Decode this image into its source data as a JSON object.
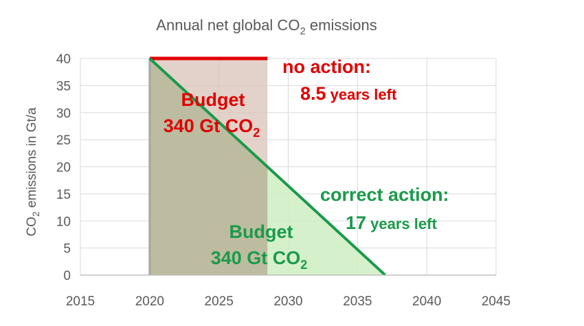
{
  "chart_data": {
    "type": "line",
    "title": "Annual net global CO",
    "title_sub": "2",
    "title_tail": " emissions",
    "ylabel": "CO",
    "ylabel_sub": "2",
    "ylabel_tail": " emissions in Gt/a",
    "xlim": [
      2015,
      2045
    ],
    "ylim": [
      0,
      40
    ],
    "x_ticks": [
      2015,
      2020,
      2025,
      2030,
      2035,
      2040,
      2045
    ],
    "y_ticks": [
      0,
      5,
      10,
      15,
      20,
      25,
      30,
      35,
      40
    ],
    "grid": true,
    "series": [
      {
        "key": "no_action",
        "x": [
          2020,
          2028.5
        ],
        "y": [
          40,
          40
        ],
        "color": "#e00000"
      },
      {
        "key": "correct_action",
        "x": [
          2020,
          2037
        ],
        "y": [
          40,
          0
        ],
        "color": "#1a9a4a"
      }
    ],
    "regions": [
      {
        "key": "budget_no_action",
        "x": [
          2020,
          2028.5
        ],
        "y": [
          0,
          40
        ],
        "color": "#d9c3b8"
      },
      {
        "key": "budget_correct",
        "x": [
          2020,
          2037
        ],
        "y_from": 40,
        "color": "#cdeec2"
      }
    ],
    "annotations": {
      "budget_red_line1": "Budget",
      "budget_red_line2": "340 Gt CO",
      "budget_red_sub": "2",
      "no_action_line1": "no action:",
      "no_action_value": "8.5",
      "no_action_unit": " years left",
      "correct_action_line1": "correct action:",
      "correct_action_value": "17",
      "correct_action_unit": " years left",
      "budget_green_line1": "Budget",
      "budget_green_line2": "340 Gt CO",
      "budget_green_sub": "2"
    },
    "colors": {
      "red": "#e00000",
      "green": "#1a9a4a",
      "grid": "#d9d9d9",
      "text": "#595959"
    }
  }
}
